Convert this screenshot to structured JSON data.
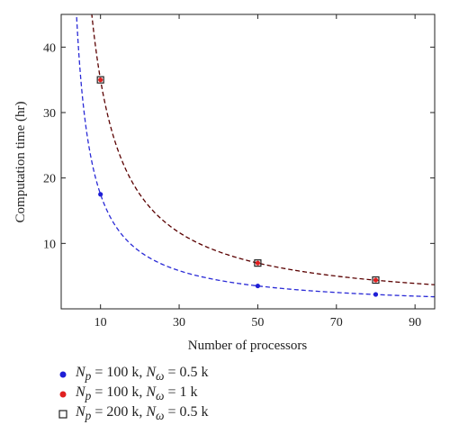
{
  "chart_data": {
    "type": "scatter",
    "xlabel": "Number of processors",
    "ylabel": "Computation time (hr)",
    "xlim": [
      0,
      95
    ],
    "ylim": [
      0,
      45
    ],
    "xticks": [
      10,
      30,
      50,
      70,
      90
    ],
    "yticks": [
      10,
      20,
      30,
      40
    ],
    "grid": false,
    "legend_position": "below",
    "series": [
      {
        "name": "N_p = 100 k, N_ω = 0.5 k",
        "marker": "filled-circle",
        "marker_color": "#1f1fd6",
        "x": [
          10,
          50,
          80
        ],
        "y": [
          17.5,
          3.5,
          2.2
        ],
        "fit_curve": {
          "form": "a/x",
          "a": 175,
          "color": "#2a2ad6",
          "dash": true
        }
      },
      {
        "name": "N_p = 100 k, N_ω = 1 k",
        "marker": "filled-circle",
        "marker_color": "#e02020",
        "x": [
          10,
          50,
          80
        ],
        "y": [
          35,
          7,
          4.4
        ],
        "fit_curve": {
          "form": "a/x",
          "a": 350,
          "color": "#5a0000",
          "dash": true
        }
      },
      {
        "name": "N_p = 200 k, N_ω = 0.5 k",
        "marker": "open-square",
        "marker_color": "#222222",
        "x": [
          10,
          50,
          80
        ],
        "y": [
          35,
          7,
          4.4
        ]
      }
    ]
  },
  "legend": [
    {
      "N": "N",
      "sub1": "p",
      "eq1": " = 100 k, ",
      "W": "N",
      "sub2": "ω",
      "eq2": " = 0.5 k"
    },
    {
      "N": "N",
      "sub1": "p",
      "eq1": " = 100 k, ",
      "W": "N",
      "sub2": "ω",
      "eq2": " = 1 k"
    },
    {
      "N": "N",
      "sub1": "p",
      "eq1": " = 200 k, ",
      "W": "N",
      "sub2": "ω",
      "eq2": " = 0.5 k"
    }
  ]
}
